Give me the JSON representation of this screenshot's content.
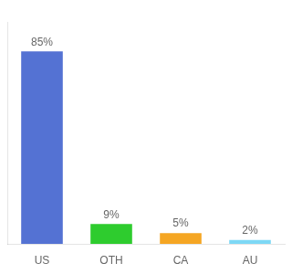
{
  "chart_data": {
    "type": "bar",
    "categories": [
      "US",
      "OTH",
      "CA",
      "AU"
    ],
    "values": [
      85,
      9,
      5,
      2
    ],
    "value_labels": [
      "85%",
      "9%",
      "5%",
      "2%"
    ],
    "data_labels": true,
    "colors": [
      "#5472d3",
      "#2ecc2e",
      "#f5a623",
      "#7dd8f5"
    ],
    "ylim": [
      0,
      98
    ],
    "grid": false,
    "tick_labels": "x"
  }
}
